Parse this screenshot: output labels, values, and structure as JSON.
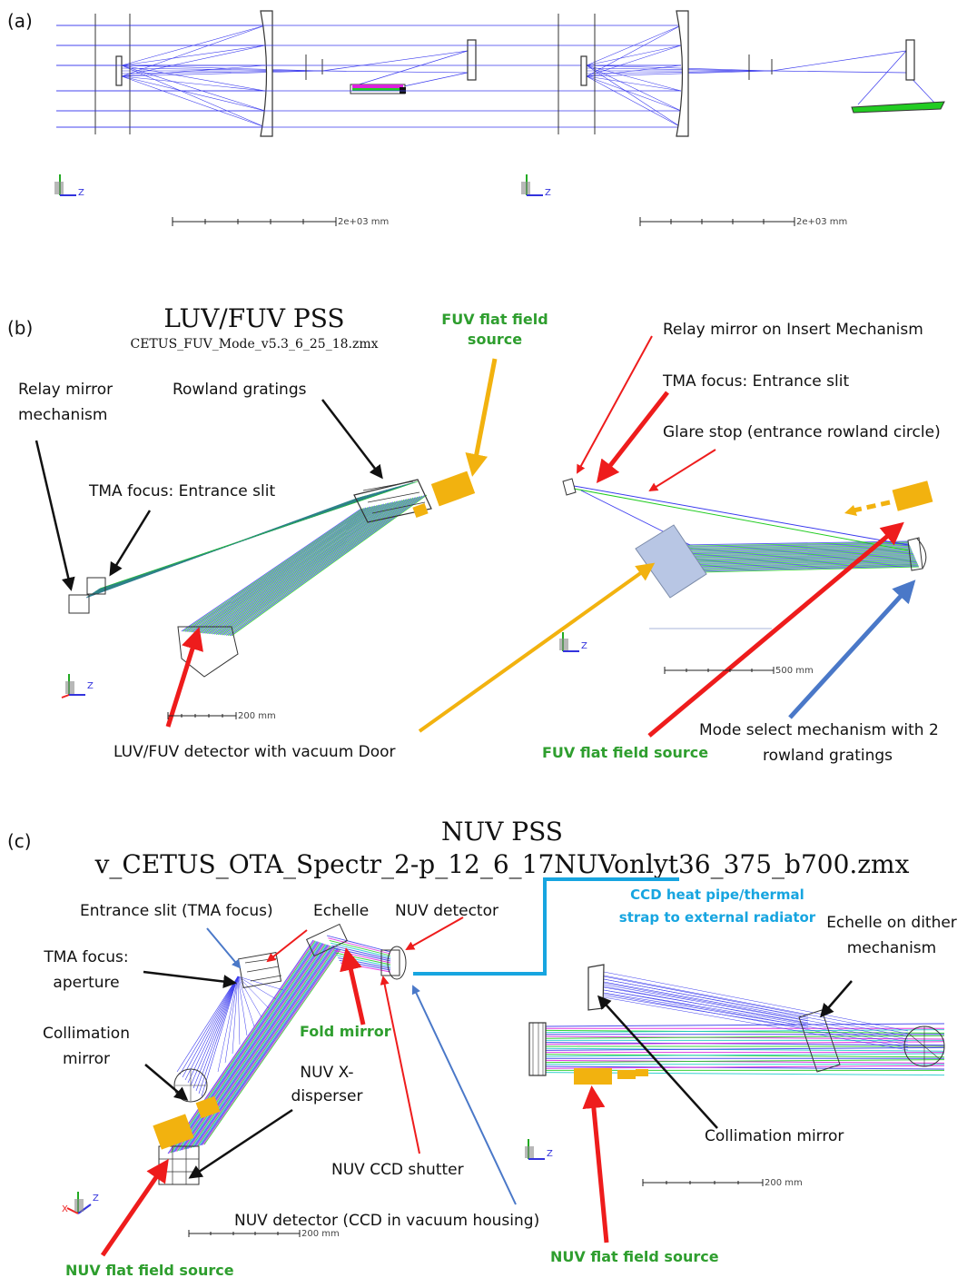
{
  "panels": {
    "a": {
      "tag": "(a)",
      "scale_left": "2e+03 mm",
      "scale_right": "2e+03 mm"
    },
    "b": {
      "tag": "(b)",
      "title": "LUV/FUV PSS",
      "subtitle": "CETUS_FUV_Mode_v5.3_6_25_18.zmx",
      "labels": {
        "fuv_flat_top_1": "FUV flat field",
        "fuv_flat_top_2": "source",
        "relay_mirror_1": "Relay mirror",
        "relay_mirror_2": "mechanism",
        "rowland": "Rowland gratings",
        "tma_focus": "TMA focus: Entrance slit",
        "detector": "LUV/FUV detector with vacuum Door",
        "relay_insert": "Relay mirror on Insert Mechanism",
        "tma_focus_right": "TMA focus: Entrance slit",
        "glare_stop": "Glare stop (entrance rowland circle)",
        "fuv_flat_bottom": "FUV flat field source",
        "mode_select_1": "Mode select mechanism with 2",
        "mode_select_2": "rowland gratings"
      },
      "scale_left": "200 mm",
      "scale_right": "500 mm"
    },
    "c": {
      "tag": "(c)",
      "title": "NUV PSS",
      "subtitle": "v_CETUS_OTA_Spectr_2-p_12_6_17NUVonlyt36_375_b700.zmx",
      "labels": {
        "entrance_slit": "Entrance slit (TMA focus)",
        "echelle": "Echelle",
        "nuv_detector_top": "NUV detector",
        "ccd_heat_1": "CCD heat pipe/thermal",
        "ccd_heat_2": "strap to external radiator",
        "echelle_dither_1": "Echelle on dither",
        "echelle_dither_2": "mechanism",
        "tma_aperture_1": "TMA focus:",
        "tma_aperture_2": "aperture",
        "collimation_1": "Collimation",
        "collimation_2": "mirror",
        "fold_mirror": "Fold mirror",
        "x_disperser_1": "NUV X-",
        "x_disperser_2": "disperser",
        "ccd_shutter": "NUV CCD shutter",
        "nuv_detector_bottom": "NUV detector (CCD in vacuum housing)",
        "nuv_flat_left": "NUV flat field source",
        "nuv_flat_right": "NUV flat field source",
        "collimation_right": "Collimation mirror"
      },
      "scale_left": "200 mm",
      "scale_right": "200 mm"
    }
  },
  "axis_letters": {
    "z": "Z",
    "x": "X",
    "y": "Y"
  },
  "colors": {
    "ray_blue": "#3a3aee",
    "ray_green": "#22cc22",
    "ray_magenta": "#dd22dd",
    "ray_cyan": "#22cccc",
    "arrow_red": "#ee1c1c",
    "arrow_black": "#111111",
    "arrow_orange": "#f2b20f",
    "arrow_blue": "#4a78c8",
    "arrow_cyan": "#17a5e0",
    "label_green": "#2e9e2e",
    "source_orange": "#f2b20f",
    "grating_fill": "#b8c6e4"
  }
}
